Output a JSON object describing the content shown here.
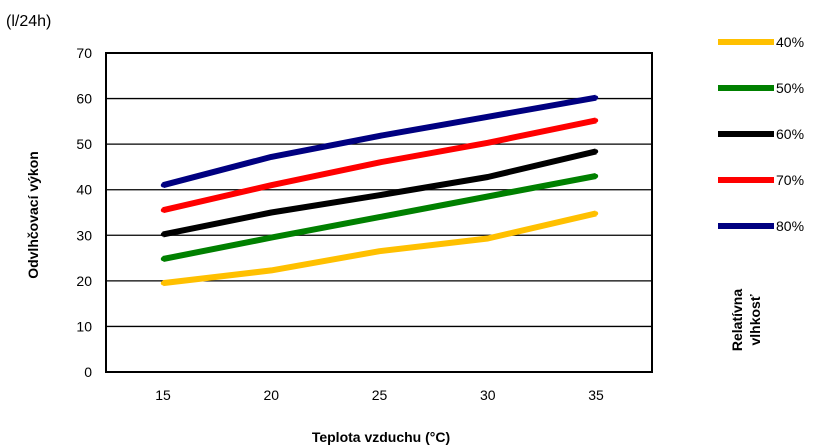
{
  "chart_data": {
    "type": "line",
    "unit_label": "(l/24h)",
    "ylabel": "Odvlhčovací výkon",
    "xlabel": "Teplota vzduchu (°C)",
    "legend_title_line1": "Relatívna",
    "legend_title_line2": "vlhkosť",
    "legend_position": "right",
    "x": [
      15,
      20,
      25,
      30,
      35
    ],
    "x_tick_labels": [
      "15",
      "20",
      "25",
      "30",
      "35"
    ],
    "ylim": [
      0,
      70
    ],
    "y_ticks": [
      0,
      10,
      20,
      30,
      40,
      50,
      60,
      70
    ],
    "y_tick_labels": [
      "0",
      "10",
      "20",
      "30",
      "40",
      "50",
      "60",
      "70"
    ],
    "grid": "horizontal",
    "series": [
      {
        "name": "40%",
        "color": "#FFC000",
        "values": [
          19.5,
          22.3,
          26.5,
          29.3,
          34.8
        ]
      },
      {
        "name": "50%",
        "color": "#008000",
        "values": [
          24.8,
          29.5,
          34.0,
          38.5,
          43.0
        ]
      },
      {
        "name": "60%",
        "color": "#000000",
        "values": [
          30.2,
          35.0,
          38.8,
          42.8,
          48.4
        ]
      },
      {
        "name": "70%",
        "color": "#FF0000",
        "values": [
          35.5,
          41.0,
          46.0,
          50.3,
          55.2
        ]
      },
      {
        "name": "80%",
        "color": "#000080",
        "values": [
          41.0,
          47.2,
          51.8,
          56.0,
          60.2
        ]
      }
    ]
  }
}
